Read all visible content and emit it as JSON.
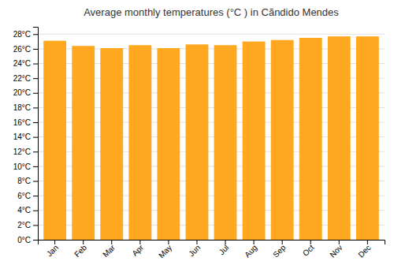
{
  "chart_data": {
    "type": "bar",
    "title": "Average monthly temperatures (°C ) in Cãndido Mendes",
    "categories": [
      "Jan",
      "Feb",
      "Mar",
      "Apr",
      "May",
      "Jun",
      "Jul",
      "Aug",
      "Sep",
      "Oct",
      "Nov",
      "Dec"
    ],
    "values": [
      27.1,
      26.4,
      26.1,
      26.5,
      26.1,
      26.6,
      26.5,
      27.0,
      27.2,
      27.5,
      27.7,
      27.7
    ],
    "color": "#FFA820",
    "ylim": [
      0,
      29
    ],
    "yticks": [
      {
        "value": 0,
        "label": "0°C"
      },
      {
        "value": 2,
        "label": "2°C"
      },
      {
        "value": 4,
        "label": "4°C"
      },
      {
        "value": 6,
        "label": "6°C"
      },
      {
        "value": 8,
        "label": "8°C"
      },
      {
        "value": 10,
        "label": "10°C"
      },
      {
        "value": 12,
        "label": "12°C"
      },
      {
        "value": 14,
        "label": "14°C"
      },
      {
        "value": 16,
        "label": "16°C"
      },
      {
        "value": 18,
        "label": "18°C"
      },
      {
        "value": 20,
        "label": "20°C"
      },
      {
        "value": 22,
        "label": "22°C"
      },
      {
        "value": 24,
        "label": "24°C"
      },
      {
        "value": 26,
        "label": "26°C"
      },
      {
        "value": 28,
        "label": "28°C"
      }
    ],
    "grid": true
  }
}
